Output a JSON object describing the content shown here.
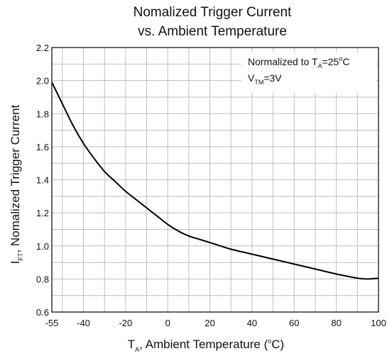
{
  "chart_data": {
    "type": "line",
    "title_line1": "Nomalized Trigger Current",
    "title_line2": "vs. Ambient Temperature",
    "xlabel": {
      "prefix": "T",
      "sub": "A",
      "text": ", Ambient Temperature (",
      "sup": "o",
      "suffix": "C)"
    },
    "ylabel": {
      "prefix": "I",
      "sub": "FT",
      "text": ", Nomalized Trigger Current"
    },
    "annotation_line1": {
      "prefix": "Normalized to T",
      "sub": "A",
      "text": "=25",
      "sup": "o",
      "suffix": "C"
    },
    "annotation_line2": {
      "prefix": "V",
      "sub": "TM",
      "text": "=3V"
    },
    "xlim": [
      -55,
      100
    ],
    "ylim": [
      0.6,
      2.2
    ],
    "x_ticks": [
      -55,
      -40,
      -20,
      0,
      20,
      40,
      60,
      80,
      100
    ],
    "x_tick_labels": [
      "-55",
      "-40",
      "-20",
      "0",
      "20",
      "40",
      "60",
      "80",
      "100"
    ],
    "y_ticks": [
      0.6,
      0.8,
      1.0,
      1.2,
      1.4,
      1.6,
      1.8,
      2.0,
      2.2
    ],
    "y_tick_labels": [
      "0.6",
      "0.8",
      "1.0",
      "1.2",
      "1.4",
      "1.6",
      "1.8",
      "2.0",
      "2.2"
    ],
    "grid": true,
    "series": [
      {
        "x": [
          -55,
          -50,
          -45,
          -40,
          -35,
          -30,
          -25,
          -20,
          -15,
          -10,
          -5,
          0,
          5,
          10,
          15,
          20,
          25,
          30,
          40,
          50,
          60,
          70,
          80,
          90,
          95,
          100
        ],
        "y": [
          1.99,
          1.86,
          1.73,
          1.62,
          1.53,
          1.45,
          1.39,
          1.33,
          1.28,
          1.23,
          1.18,
          1.13,
          1.09,
          1.06,
          1.04,
          1.02,
          1.0,
          0.98,
          0.95,
          0.92,
          0.89,
          0.86,
          0.83,
          0.805,
          0.8,
          0.805
        ]
      }
    ],
    "colors": {
      "line": "#000000",
      "grid": "#bdbdbd",
      "frame": "#000000"
    }
  }
}
